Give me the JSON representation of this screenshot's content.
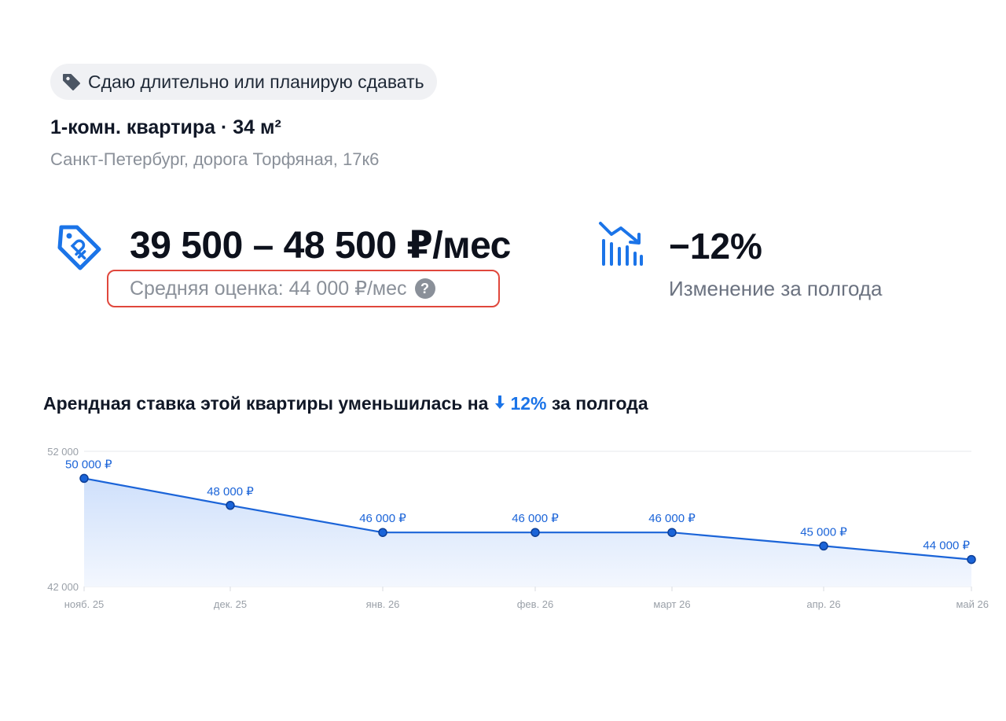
{
  "status_chip": {
    "label": "Сдаю длительно или планирую сдавать",
    "icon": "tag-icon"
  },
  "flat": {
    "title": "1-комн. квартира · 34 м²",
    "address": "Санкт-Петербург, дорога Торфяная, 17к6"
  },
  "estimate": {
    "range": "39 500 – 48 500 ₽/мес",
    "average": "Средняя оценка: 44 000 ₽/мес",
    "help_icon": "question-icon",
    "price_icon": "price-tag-ruble-icon",
    "highlight_color": "#e0473c"
  },
  "change": {
    "value": "−12%",
    "label": "Изменение за полгода",
    "icon": "declining-chart-icon"
  },
  "chart_heading": {
    "before": "Арендная ставка этой квартиры уменьшилась на",
    "percent": "12%",
    "after": "за полгода",
    "accent_color": "#1b74e8"
  },
  "chart_data": {
    "type": "area",
    "categories": [
      "нояб. 25",
      "дек. 25",
      "янв. 26",
      "фев. 26",
      "март 26",
      "апр. 26",
      "май 26"
    ],
    "series": [
      {
        "values": [
          50000,
          48000,
          46000,
          46000,
          46000,
          45000,
          44000
        ]
      }
    ],
    "data_labels": [
      "50 000 ₽",
      "48 000 ₽",
      "46 000 ₽",
      "46 000 ₽",
      "46 000 ₽",
      "45 000 ₽",
      "44 000 ₽"
    ],
    "y_ticks": [
      "52 000",
      "42 000"
    ],
    "ylim": [
      42000,
      52000
    ],
    "title": "",
    "xlabel": "",
    "ylabel": "",
    "line_color": "#1b64d8",
    "grid": true
  }
}
